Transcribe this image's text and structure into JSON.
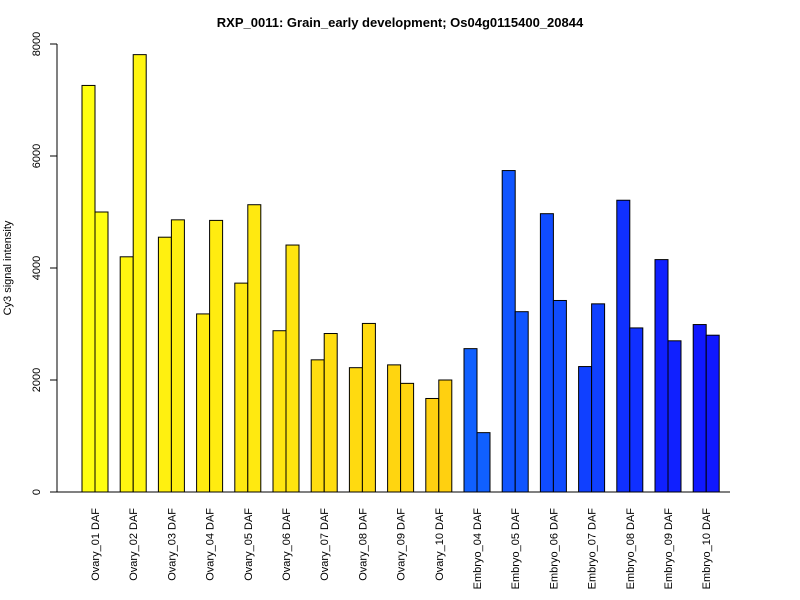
{
  "chart_data": {
    "type": "bar",
    "title": "RXP_0011: Grain_early development; Os04g0115400_20844",
    "xlabel": "",
    "ylabel": "Cy3 signal intensity",
    "ylim": [
      0,
      8000
    ],
    "yticks": [
      0,
      2000,
      4000,
      6000,
      8000
    ],
    "grid": false,
    "legend": "none",
    "categories": [
      "Ovary_01 DAF",
      "Ovary_02 DAF",
      "Ovary_03 DAF",
      "Ovary_04 DAF",
      "Ovary_05 DAF",
      "Ovary_06 DAF",
      "Ovary_07 DAF",
      "Ovary_08 DAF",
      "Ovary_09 DAF",
      "Ovary_10 DAF",
      "Embryo_04 DAF",
      "Embryo_05 DAF",
      "Embryo_06 DAF",
      "Embryo_07 DAF",
      "Embryo_08 DAF",
      "Embryo_09 DAF",
      "Embryo_10 DAF"
    ],
    "series": [
      {
        "values": [
          7260,
          4200,
          4550,
          3180,
          3730,
          2880,
          2360,
          2220,
          2270,
          1670,
          2560,
          5740,
          4970,
          2240,
          5210,
          4150,
          2990
        ]
      },
      {
        "values": [
          5000,
          7810,
          4860,
          4850,
          5130,
          4410,
          2830,
          3010,
          1940,
          2000,
          1060,
          3220,
          3420,
          3360,
          2930,
          2700,
          2800
        ]
      }
    ],
    "colors": [
      "#FFFF10",
      "#FFF510",
      "#FFF010",
      "#FFEC10",
      "#FFE910",
      "#FFE510",
      "#FFDD10",
      "#FFDA10",
      "#FFD510",
      "#FFD010",
      "#1060FF",
      "#1055FF",
      "#104CFF",
      "#1040FF",
      "#1030FF",
      "#1020FF",
      "#1018FF"
    ]
  }
}
